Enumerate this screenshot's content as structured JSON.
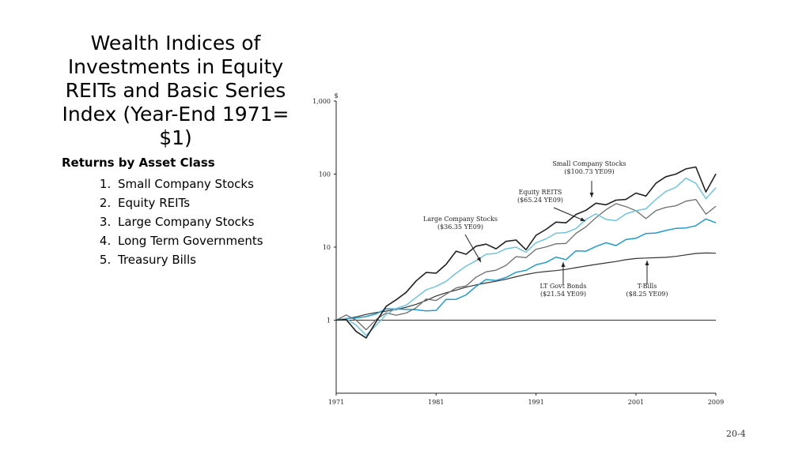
{
  "slide": {
    "title": "Wealth Indices of Investments in Equity REITs and Basic Series Index  (Year-End 1971= $1)",
    "subheading": "Returns by Asset Class",
    "list_items": [
      "Small Company Stocks",
      "Equity REITs",
      "Large Company Stocks",
      "Long Term Governments",
      "Treasury Bills"
    ],
    "slide_number": "20-4"
  },
  "chart_data": {
    "type": "line",
    "title": "",
    "xlabel": "",
    "ylabel": "$",
    "y_scale": "log",
    "xlim": [
      1971,
      2009
    ],
    "ylim": [
      0.1,
      1000
    ],
    "x_ticks": [
      "1971",
      "1981",
      "1991",
      "2001",
      "2009"
    ],
    "y_ticks": [
      "1",
      "10",
      "100",
      "1,000"
    ],
    "grid": false,
    "series": [
      {
        "name": "Small Company Stocks",
        "color": "#222222",
        "x": [
          1971,
          1972,
          1973,
          1974,
          1975,
          1976,
          1977,
          1978,
          1979,
          1980,
          1981,
          1982,
          1983,
          1984,
          1985,
          1986,
          1987,
          1988,
          1989,
          1990,
          1991,
          1992,
          1993,
          1994,
          1995,
          1996,
          1997,
          1998,
          1999,
          2000,
          2001,
          2002,
          2003,
          2004,
          2005,
          2006,
          2007,
          2008,
          2009
        ],
        "values": [
          1,
          1.02,
          0.7,
          0.57,
          0.95,
          1.55,
          1.9,
          2.4,
          3.45,
          4.5,
          4.4,
          5.8,
          8.8,
          8.0,
          10.3,
          11.0,
          9.5,
          12.0,
          12.5,
          9.2,
          14.5,
          17.5,
          22.0,
          21.5,
          28.0,
          32.0,
          40.0,
          38.0,
          44.0,
          45.0,
          55.0,
          50.0,
          75.0,
          92.0,
          100.0,
          118.0,
          125.0,
          57.0,
          100.73
        ]
      },
      {
        "name": "Equity REITs",
        "color": "#6fc4e3",
        "x": [
          1971,
          1972,
          1973,
          1974,
          1975,
          1976,
          1977,
          1978,
          1979,
          1980,
          1981,
          1982,
          1983,
          1984,
          1985,
          1986,
          1987,
          1988,
          1989,
          1990,
          1991,
          1992,
          1993,
          1994,
          1995,
          1996,
          1997,
          1998,
          1999,
          2000,
          2001,
          2002,
          2003,
          2004,
          2005,
          2006,
          2007,
          2008,
          2009
        ],
        "values": [
          1,
          1.06,
          0.85,
          0.62,
          0.85,
          1.2,
          1.45,
          1.6,
          2.05,
          2.6,
          2.9,
          3.4,
          4.4,
          5.5,
          6.5,
          8.0,
          8.2,
          9.5,
          10.0,
          8.5,
          11.5,
          13.0,
          15.5,
          15.8,
          18.0,
          24.0,
          28.5,
          24.0,
          23.0,
          28.5,
          31.5,
          33.5,
          45.0,
          58.0,
          66.0,
          88.0,
          75.0,
          46.0,
          65.24
        ]
      },
      {
        "name": "Large Company Stocks",
        "color": "#6d6d6d",
        "x": [
          1971,
          1972,
          1973,
          1974,
          1975,
          1976,
          1977,
          1978,
          1979,
          1980,
          1981,
          1982,
          1983,
          1984,
          1985,
          1986,
          1987,
          1988,
          1989,
          1990,
          1991,
          1992,
          1993,
          1994,
          1995,
          1996,
          1997,
          1998,
          1999,
          2000,
          2001,
          2002,
          2003,
          2004,
          2005,
          2006,
          2007,
          2008,
          2009
        ],
        "values": [
          1,
          1.18,
          1.0,
          0.74,
          1.02,
          1.26,
          1.17,
          1.25,
          1.48,
          1.95,
          1.86,
          2.26,
          2.76,
          2.94,
          3.87,
          4.59,
          4.83,
          5.63,
          7.41,
          7.18,
          9.36,
          10.08,
          11.09,
          11.24,
          15.44,
          18.99,
          25.32,
          32.56,
          39.4,
          35.82,
          31.56,
          24.59,
          31.64,
          35.08,
          36.81,
          42.62,
          44.96,
          28.33,
          36.35
        ]
      },
      {
        "name": "LT Govt Bonds",
        "color": "#1f9bd0",
        "x": [
          1971,
          1972,
          1973,
          1974,
          1975,
          1976,
          1977,
          1978,
          1979,
          1980,
          1981,
          1982,
          1983,
          1984,
          1985,
          1986,
          1987,
          1988,
          1989,
          1990,
          1991,
          1992,
          1993,
          1994,
          1995,
          1996,
          1997,
          1998,
          1999,
          2000,
          2001,
          2002,
          2003,
          2004,
          2005,
          2006,
          2007,
          2008,
          2009
        ],
        "values": [
          1,
          1.06,
          1.07,
          1.12,
          1.22,
          1.43,
          1.42,
          1.41,
          1.39,
          1.34,
          1.36,
          1.92,
          1.93,
          2.22,
          2.9,
          3.6,
          3.5,
          3.84,
          4.53,
          4.81,
          5.73,
          6.19,
          7.31,
          6.75,
          8.89,
          8.8,
          10.2,
          11.5,
          10.5,
          12.7,
          13.2,
          15.4,
          15.6,
          16.9,
          18.1,
          18.3,
          19.7,
          24.3,
          21.54
        ]
      },
      {
        "name": "T-Bills",
        "color": "#333333",
        "x": [
          1971,
          1972,
          1973,
          1974,
          1975,
          1976,
          1977,
          1978,
          1979,
          1980,
          1981,
          1982,
          1983,
          1984,
          1985,
          1986,
          1987,
          1988,
          1989,
          1990,
          1991,
          1992,
          1993,
          1994,
          1995,
          1996,
          1997,
          1998,
          1999,
          2000,
          2001,
          2002,
          2003,
          2004,
          2005,
          2006,
          2007,
          2008,
          2009
        ],
        "values": [
          1,
          1.04,
          1.11,
          1.2,
          1.27,
          1.33,
          1.4,
          1.5,
          1.65,
          1.86,
          2.14,
          2.37,
          2.58,
          2.83,
          3.04,
          3.23,
          3.41,
          3.63,
          3.93,
          4.23,
          4.47,
          4.63,
          4.77,
          4.96,
          5.24,
          5.51,
          5.8,
          6.08,
          6.36,
          6.73,
          6.99,
          7.1,
          7.17,
          7.26,
          7.48,
          7.84,
          8.2,
          8.32,
          8.25
        ]
      }
    ],
    "annotations": [
      {
        "series": 0,
        "lines": [
          "Small Company Stocks",
          "($100.73 YE09)"
        ]
      },
      {
        "series": 1,
        "lines": [
          "Equity REITS",
          "($65.24 YE09)"
        ]
      },
      {
        "series": 2,
        "lines": [
          "Large Company Stocks",
          "($36.35 YE09)"
        ]
      },
      {
        "series": 3,
        "lines": [
          "LT Govt Bonds",
          "($21.54 YE09)"
        ]
      },
      {
        "series": 4,
        "lines": [
          "T-Bills",
          "($8.25 YE09)"
        ]
      }
    ]
  }
}
